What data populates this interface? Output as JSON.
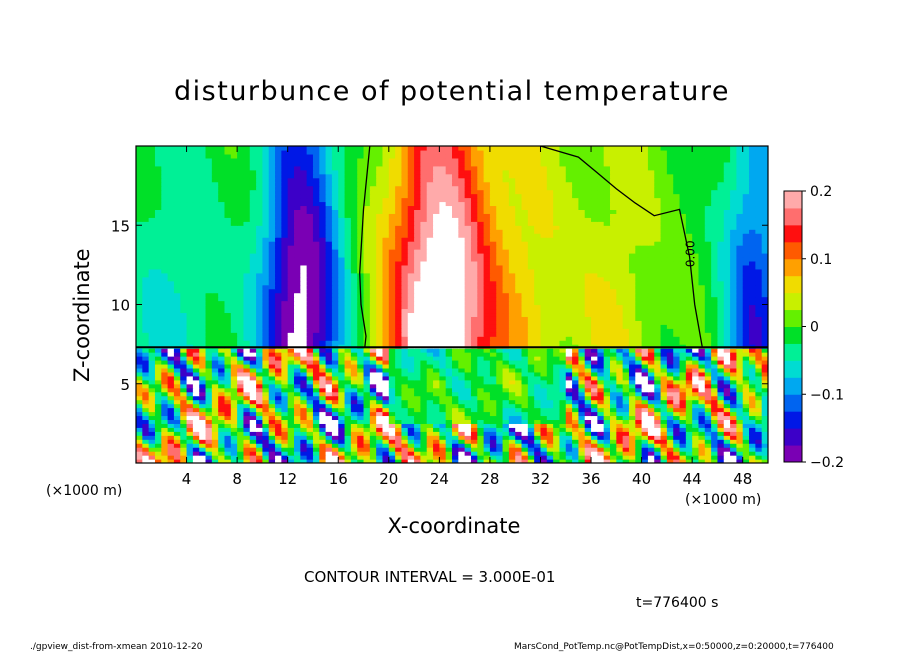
{
  "chart_data": {
    "type": "heatmap",
    "title": "disturbunce of potential temperature",
    "xlabel": "X-coordinate",
    "ylabel": "Z-coordinate",
    "x_unit_label": "(×1000 m)",
    "x_ticks": [
      4,
      8,
      12,
      16,
      20,
      24,
      28,
      32,
      36,
      40,
      44,
      48
    ],
    "y_ticks": [
      5,
      10,
      15
    ],
    "xlim": [
      0,
      50
    ],
    "ylim": [
      0,
      20
    ],
    "colorbar": {
      "range": [
        -0.2,
        0.2
      ],
      "ticks": [
        -0.2,
        -0.1,
        0,
        0.1,
        0.2
      ],
      "tick_labels": [
        "−0.2",
        "−0.1",
        "0",
        "0.1",
        "0.2"
      ],
      "colors": [
        "#7a00b4",
        "#3c00c8",
        "#0018e6",
        "#0064f0",
        "#00a8f0",
        "#00dcd2",
        "#00f096",
        "#00e028",
        "#64f000",
        "#c8f000",
        "#f0dc00",
        "#ffa000",
        "#ff5a00",
        "#ff0f0f",
        "#ff6e6e",
        "#ffaaaa"
      ]
    },
    "contour_label": "0.00",
    "upper_layer_bottom": 7.3,
    "upper_layer_anomalies": [
      {
        "x": 3,
        "value": -0.06,
        "width": 3.5
      },
      {
        "x": 13,
        "value": -0.22,
        "width": 3.2
      },
      {
        "x": 24,
        "value": 0.26,
        "width": 4.0
      },
      {
        "x": 31,
        "value": 0.06,
        "width": 3.5
      },
      {
        "x": 38,
        "value": 0.05,
        "width": 3.0
      },
      {
        "x": 49,
        "value": -0.14,
        "width": 2.5
      }
    ]
  },
  "contour_interval": "CONTOUR INTERVAL = 3.000E-01",
  "time_label": "t=776400 s",
  "footer_left": "./gpview_dist-from-xmean  2010-12-20",
  "footer_right": "MarsCond_PotTemp.nc@PotTempDist,x=0:50000,z=0:20000,t=776400"
}
